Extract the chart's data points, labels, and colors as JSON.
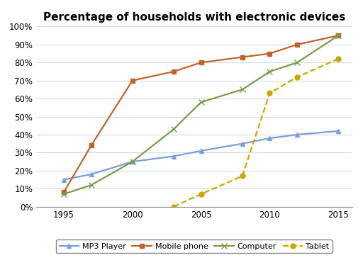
{
  "title": "Percentage of households with electronic devices",
  "series": {
    "MP3 Player": {
      "x": [
        1995,
        1997,
        2000,
        2003,
        2005,
        2008,
        2010,
        2012,
        2015
      ],
      "y": [
        15,
        18,
        25,
        28,
        31,
        35,
        38,
        40,
        42
      ],
      "color": "#7B9ED9",
      "marker": "^",
      "linestyle": "-",
      "markersize": 5
    },
    "Mobile phone": {
      "x": [
        1995,
        1997,
        2000,
        2003,
        2005,
        2008,
        2010,
        2012,
        2015
      ],
      "y": [
        8,
        34,
        70,
        75,
        80,
        83,
        85,
        90,
        95
      ],
      "color": "#C0632A",
      "marker": "s",
      "linestyle": "-",
      "markersize": 5
    },
    "Computer": {
      "x": [
        1995,
        1997,
        2000,
        2003,
        2005,
        2008,
        2010,
        2012,
        2015
      ],
      "y": [
        7,
        12,
        25,
        43,
        58,
        65,
        75,
        80,
        95
      ],
      "color": "#7B9B4A",
      "marker": "x",
      "linestyle": "-",
      "markersize": 6
    },
    "Tablet": {
      "x": [
        2003,
        2005,
        2008,
        2010,
        2012,
        2015
      ],
      "y": [
        0,
        7,
        17,
        63,
        72,
        82
      ],
      "color": "#C8A800",
      "marker": "o",
      "linestyle": "--",
      "markersize": 5
    }
  },
  "xlim": [
    1993,
    2016
  ],
  "ylim": [
    0,
    100
  ],
  "xticks": [
    1995,
    2000,
    2005,
    2010,
    2015
  ],
  "yticks": [
    0,
    10,
    20,
    30,
    40,
    50,
    60,
    70,
    80,
    90,
    100
  ],
  "legend_order": [
    "MP3 Player",
    "Mobile phone",
    "Computer",
    "Tablet"
  ],
  "title_fontsize": 11,
  "tick_fontsize": 8.5,
  "grid_color": "#D0DCE8",
  "background_color": "white"
}
